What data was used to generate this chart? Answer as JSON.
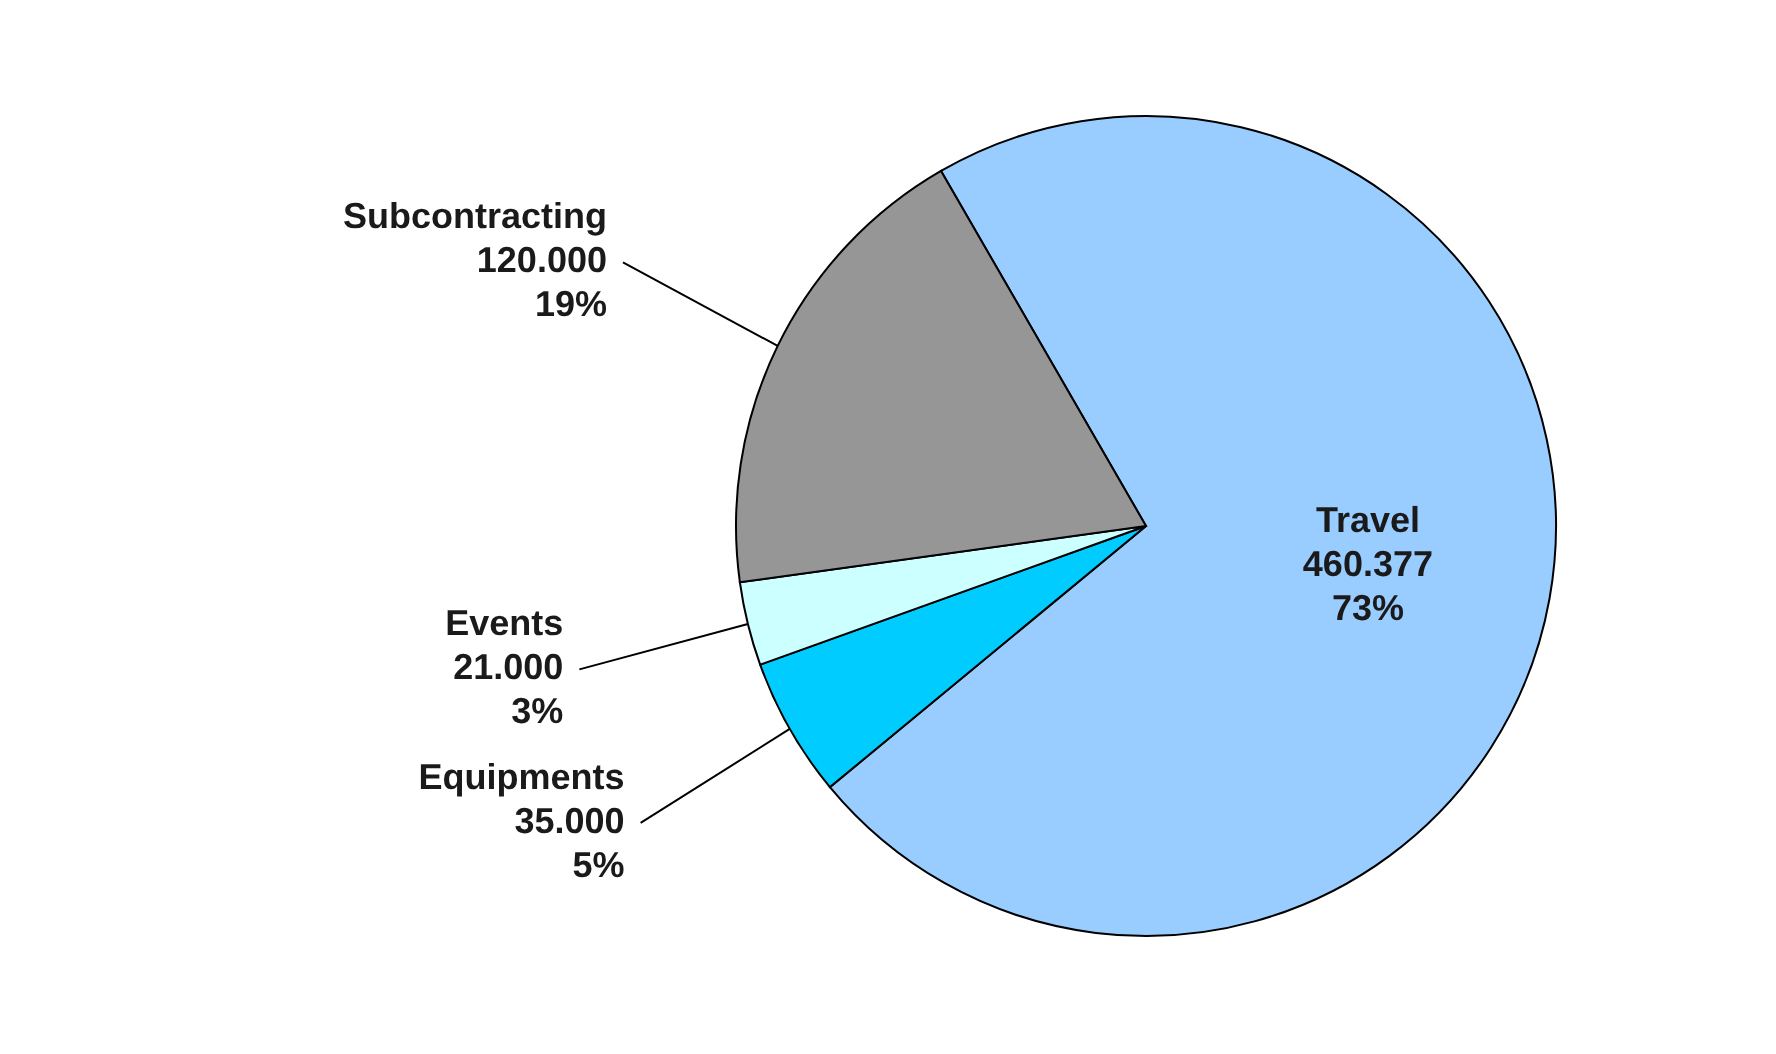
{
  "chart_data": {
    "type": "pie",
    "categories": [
      "Travel",
      "Equipments",
      "Events",
      "Subcontracting"
    ],
    "values": [
      460377,
      35000,
      21000,
      120000
    ],
    "colors": [
      "#99ccff",
      "#00ccff",
      "#ccffff",
      "#969696"
    ],
    "value_labels": [
      "460.377\n73%",
      "35.000\n5%",
      "21.000\n3%",
      "120.000\n19%"
    ],
    "legend": false
  }
}
